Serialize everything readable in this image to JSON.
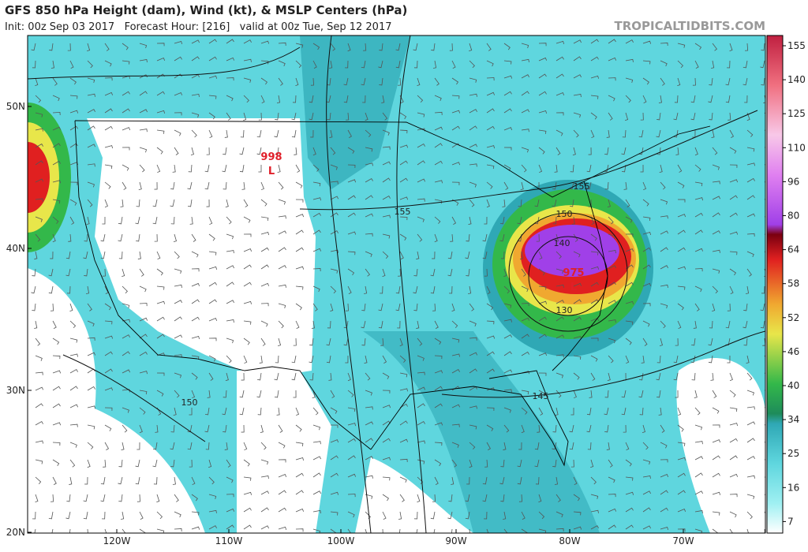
{
  "header": {
    "title": "GFS 850 hPa Height (dam), Wind (kt), & MSLP Centers (hPa)",
    "subtitle": "Init: 00z Sep 03 2017   Forecast Hour: [216]   valid at 00z Tue, Sep 12 2017",
    "brand": "TROPICALTIDBITS.COM"
  },
  "map": {
    "latitude_labels": [
      "50N",
      "40N",
      "30N",
      "20N"
    ],
    "longitude_labels": [
      "120W",
      "110W",
      "100W",
      "90W",
      "80W",
      "70W"
    ],
    "pressure_centers": [
      {
        "value": "998",
        "symbol": "L"
      },
      {
        "value": "975",
        "symbol": "L"
      }
    ],
    "contour_labels": [
      "155",
      "155",
      "150",
      "140",
      "130",
      "145",
      "150"
    ]
  },
  "colorbar": {
    "labels": [
      155,
      140,
      125,
      110,
      96,
      80,
      64,
      58,
      52,
      46,
      40,
      34,
      25,
      16,
      7
    ]
  }
}
